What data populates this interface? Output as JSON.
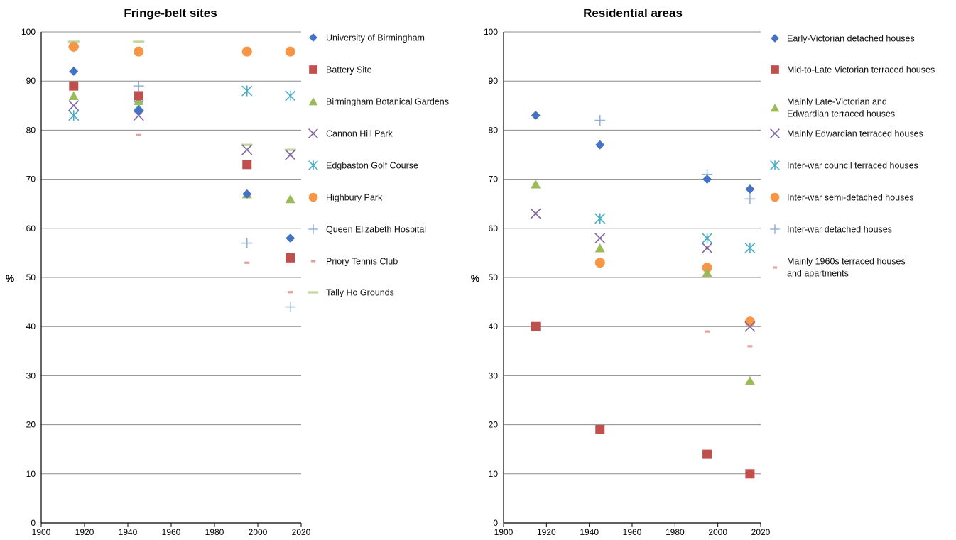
{
  "chart_data": [
    {
      "type": "scatter",
      "title": "Fringe-belt sites",
      "xlabel": "",
      "ylabel": "%",
      "xlim": [
        1900,
        2020
      ],
      "ylim": [
        0,
        100
      ],
      "x_ticks": [
        1900,
        1920,
        1940,
        1960,
        1980,
        2000,
        2020
      ],
      "y_ticks": [
        0,
        10,
        20,
        30,
        40,
        50,
        60,
        70,
        80,
        90,
        100
      ],
      "grid": "horizontal",
      "legend_position": "right",
      "series": [
        {
          "name": "University of Birmingham",
          "marker": "diamond",
          "color": "#4472C4",
          "points": [
            [
              1915,
              92
            ],
            [
              1945,
              84
            ],
            [
              1995,
              67
            ],
            [
              2015,
              58
            ]
          ]
        },
        {
          "name": "Battery Site",
          "marker": "square",
          "color": "#C0504D",
          "points": [
            [
              1915,
              89
            ],
            [
              1945,
              87
            ],
            [
              1995,
              73
            ],
            [
              2015,
              54
            ]
          ]
        },
        {
          "name": "Birmingham Botanical Gardens",
          "marker": "triangle",
          "color": "#9BBB59",
          "points": [
            [
              1915,
              87
            ],
            [
              1945,
              86
            ],
            [
              1995,
              67
            ],
            [
              2015,
              66
            ]
          ]
        },
        {
          "name": "Cannon Hill Park",
          "marker": "x",
          "color": "#8064A2",
          "points": [
            [
              1915,
              85
            ],
            [
              1945,
              83
            ],
            [
              1995,
              76
            ],
            [
              2015,
              75
            ]
          ]
        },
        {
          "name": "Edgbaston Golf Course",
          "marker": "star",
          "color": "#4BACC6",
          "points": [
            [
              1915,
              83
            ],
            [
              1945,
              85
            ],
            [
              1995,
              88
            ],
            [
              2015,
              87
            ]
          ]
        },
        {
          "name": "Highbury Park",
          "marker": "circle",
          "color": "#F79646",
          "points": [
            [
              1915,
              97
            ],
            [
              1945,
              96
            ],
            [
              1995,
              96
            ],
            [
              2015,
              96
            ]
          ]
        },
        {
          "name": "Queen Elizabeth Hospital",
          "marker": "plus",
          "color": "#95B3D7",
          "points": [
            [
              1915,
              97
            ],
            [
              1945,
              89
            ],
            [
              1995,
              57
            ],
            [
              2015,
              44
            ]
          ]
        },
        {
          "name": "Priory Tennis Club",
          "marker": "dash",
          "color": "#E6A0A0",
          "points": [
            [
              1945,
              79
            ],
            [
              1995,
              53
            ],
            [
              2015,
              47
            ]
          ]
        },
        {
          "name": "Tally Ho Grounds",
          "marker": "longdash",
          "color": "#C3D69B",
          "points": [
            [
              1915,
              98
            ],
            [
              1945,
              98
            ],
            [
              1995,
              77
            ],
            [
              2015,
              76
            ]
          ]
        }
      ]
    },
    {
      "type": "scatter",
      "title": "Residential  areas",
      "xlabel": "",
      "ylabel": "%",
      "xlim": [
        1900,
        2020
      ],
      "ylim": [
        0,
        100
      ],
      "x_ticks": [
        1900,
        1920,
        1940,
        1960,
        1980,
        2000,
        2020
      ],
      "y_ticks": [
        0,
        10,
        20,
        30,
        40,
        50,
        60,
        70,
        80,
        90,
        100
      ],
      "grid": "horizontal",
      "legend_position": "right",
      "series": [
        {
          "name": "Early-Victorian detached houses",
          "marker": "diamond",
          "color": "#4472C4",
          "points": [
            [
              1915,
              83
            ],
            [
              1945,
              77
            ],
            [
              1995,
              70
            ],
            [
              2015,
              68
            ]
          ]
        },
        {
          "name": "Mid-to-Late Victorian terraced houses",
          "marker": "square",
          "color": "#C0504D",
          "points": [
            [
              1915,
              40
            ],
            [
              1945,
              19
            ],
            [
              1995,
              14
            ],
            [
              2015,
              10
            ]
          ]
        },
        {
          "name": "Mainly Late-Victorian and\nEdwardian terraced houses",
          "marker": "triangle",
          "color": "#9BBB59",
          "points": [
            [
              1915,
              69
            ],
            [
              1945,
              56
            ],
            [
              1995,
              51
            ],
            [
              2015,
              29
            ]
          ]
        },
        {
          "name": "Mainly Edwardian terraced houses",
          "marker": "x",
          "color": "#8064A2",
          "points": [
            [
              1915,
              63
            ],
            [
              1945,
              58
            ],
            [
              1995,
              56
            ],
            [
              2015,
              40
            ]
          ]
        },
        {
          "name": "Inter-war council terraced houses",
          "marker": "star",
          "color": "#4BACC6",
          "points": [
            [
              1945,
              62
            ],
            [
              1995,
              58
            ],
            [
              2015,
              56
            ]
          ]
        },
        {
          "name": "Inter-war semi-detached houses",
          "marker": "circle",
          "color": "#F79646",
          "points": [
            [
              1945,
              53
            ],
            [
              1995,
              52
            ],
            [
              2015,
              41
            ]
          ]
        },
        {
          "name": "Inter-war detached houses",
          "marker": "plus",
          "color": "#95B3D7",
          "points": [
            [
              1945,
              82
            ],
            [
              1995,
              71
            ],
            [
              2015,
              66
            ]
          ]
        },
        {
          "name": "Mainly 1960s terraced houses\nand apartments",
          "marker": "dash",
          "color": "#E6A0A0",
          "points": [
            [
              1995,
              39
            ],
            [
              2015,
              36
            ]
          ]
        }
      ]
    }
  ]
}
